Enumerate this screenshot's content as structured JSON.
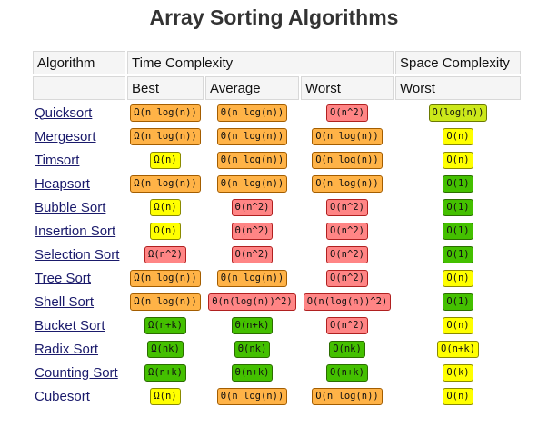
{
  "title": "Array Sorting Algorithms",
  "headers": {
    "algorithm": "Algorithm",
    "time": "Time Complexity",
    "space": "Space Complexity",
    "best": "Best",
    "average": "Average",
    "worst": "Worst",
    "space_worst": "Worst"
  },
  "colors": {
    "orange": "#ffb347",
    "yellow": "#ffff00",
    "red": "#ff8585",
    "green": "#44c000",
    "lime": "#cce81a"
  },
  "rows": [
    {
      "name": "Quicksort",
      "best": {
        "text": "Ω(n log(n))",
        "color": "orange"
      },
      "avg": {
        "text": "Θ(n log(n))",
        "color": "orange"
      },
      "worst": {
        "text": "O(n^2)",
        "color": "red"
      },
      "space": {
        "text": "O(log(n))",
        "color": "lime"
      }
    },
    {
      "name": "Mergesort",
      "best": {
        "text": "Ω(n log(n))",
        "color": "orange"
      },
      "avg": {
        "text": "Θ(n log(n))",
        "color": "orange"
      },
      "worst": {
        "text": "O(n log(n))",
        "color": "orange"
      },
      "space": {
        "text": "O(n)",
        "color": "yellow"
      }
    },
    {
      "name": "Timsort",
      "best": {
        "text": "Ω(n)",
        "color": "yellow"
      },
      "avg": {
        "text": "Θ(n log(n))",
        "color": "orange"
      },
      "worst": {
        "text": "O(n log(n))",
        "color": "orange"
      },
      "space": {
        "text": "O(n)",
        "color": "yellow"
      }
    },
    {
      "name": "Heapsort",
      "best": {
        "text": "Ω(n log(n))",
        "color": "orange"
      },
      "avg": {
        "text": "Θ(n log(n))",
        "color": "orange"
      },
      "worst": {
        "text": "O(n log(n))",
        "color": "orange"
      },
      "space": {
        "text": "O(1)",
        "color": "green"
      }
    },
    {
      "name": "Bubble Sort",
      "best": {
        "text": "Ω(n)",
        "color": "yellow"
      },
      "avg": {
        "text": "Θ(n^2)",
        "color": "red"
      },
      "worst": {
        "text": "O(n^2)",
        "color": "red"
      },
      "space": {
        "text": "O(1)",
        "color": "green"
      }
    },
    {
      "name": "Insertion Sort",
      "best": {
        "text": "Ω(n)",
        "color": "yellow"
      },
      "avg": {
        "text": "Θ(n^2)",
        "color": "red"
      },
      "worst": {
        "text": "O(n^2)",
        "color": "red"
      },
      "space": {
        "text": "O(1)",
        "color": "green"
      }
    },
    {
      "name": "Selection Sort",
      "best": {
        "text": "Ω(n^2)",
        "color": "red"
      },
      "avg": {
        "text": "Θ(n^2)",
        "color": "red"
      },
      "worst": {
        "text": "O(n^2)",
        "color": "red"
      },
      "space": {
        "text": "O(1)",
        "color": "green"
      }
    },
    {
      "name": "Tree Sort",
      "best": {
        "text": "Ω(n log(n))",
        "color": "orange"
      },
      "avg": {
        "text": "Θ(n log(n))",
        "color": "orange"
      },
      "worst": {
        "text": "O(n^2)",
        "color": "red"
      },
      "space": {
        "text": "O(n)",
        "color": "yellow"
      }
    },
    {
      "name": "Shell Sort",
      "best": {
        "text": "Ω(n log(n))",
        "color": "orange"
      },
      "avg": {
        "text": "Θ(n(log(n))^2)",
        "color": "red"
      },
      "worst": {
        "text": "O(n(log(n))^2)",
        "color": "red"
      },
      "space": {
        "text": "O(1)",
        "color": "green"
      }
    },
    {
      "name": "Bucket Sort",
      "best": {
        "text": "Ω(n+k)",
        "color": "green"
      },
      "avg": {
        "text": "Θ(n+k)",
        "color": "green"
      },
      "worst": {
        "text": "O(n^2)",
        "color": "red"
      },
      "space": {
        "text": "O(n)",
        "color": "yellow"
      }
    },
    {
      "name": "Radix Sort",
      "best": {
        "text": "Ω(nk)",
        "color": "green"
      },
      "avg": {
        "text": "Θ(nk)",
        "color": "green"
      },
      "worst": {
        "text": "O(nk)",
        "color": "green"
      },
      "space": {
        "text": "O(n+k)",
        "color": "yellow"
      }
    },
    {
      "name": "Counting Sort",
      "best": {
        "text": "Ω(n+k)",
        "color": "green"
      },
      "avg": {
        "text": "Θ(n+k)",
        "color": "green"
      },
      "worst": {
        "text": "O(n+k)",
        "color": "green"
      },
      "space": {
        "text": "O(k)",
        "color": "yellow"
      }
    },
    {
      "name": "Cubesort",
      "best": {
        "text": "Ω(n)",
        "color": "yellow"
      },
      "avg": {
        "text": "Θ(n log(n))",
        "color": "orange"
      },
      "worst": {
        "text": "O(n log(n))",
        "color": "orange"
      },
      "space": {
        "text": "O(n)",
        "color": "yellow"
      }
    }
  ]
}
